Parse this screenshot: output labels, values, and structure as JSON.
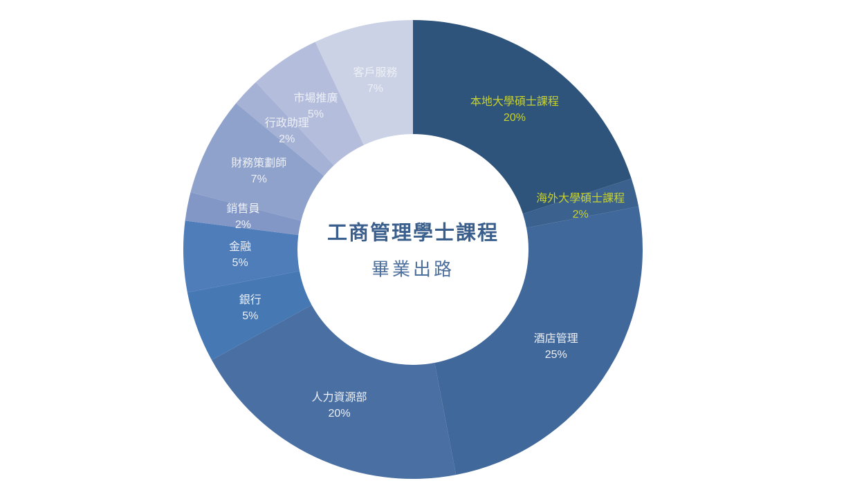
{
  "chart_data": {
    "type": "pie",
    "subtype": "donut",
    "title": "工商管理學士課程",
    "subtitle": "畢業出路",
    "start_angle_deg": 0,
    "direction": "clockwise",
    "unit": "%",
    "legend": "none",
    "labels_inside_slices": true,
    "categories": [
      "本地大學碩士課程",
      "海外大學碩士課程",
      "酒店管理",
      "人力資源部",
      "銀行",
      "金融",
      "銷售員",
      "財務策劃師",
      "行政助理",
      "市場推廣",
      "客戶服務"
    ],
    "values": [
      20,
      2,
      25,
      20,
      5,
      5,
      2,
      7,
      2,
      5,
      7
    ],
    "value_labels": [
      "20%",
      "2%",
      "25%",
      "20%",
      "5%",
      "5%",
      "2%",
      "7%",
      "2%",
      "5%",
      "7%"
    ],
    "slice_colors": [
      "#2F547B",
      "#3B628F",
      "#41689B",
      "#4A70A3",
      "#4678B4",
      "#4F7DBA",
      "#8297C6",
      "#8FA2CC",
      "#A6B2D5",
      "#B4BDDC",
      "#CBD2E5"
    ],
    "label_colors": [
      "#C8D22B",
      "#C8D22B",
      "#EDF0F6",
      "#EDF0F6",
      "#EDF0F6",
      "#EDF0F6",
      "#EDF0F6",
      "#EDF0F6",
      "#EDF0F6",
      "#EDF0F6",
      "#EDF0F6"
    ]
  },
  "center": {
    "title": "工商管理學士課程",
    "subtitle": "畢業出路"
  },
  "colors": {
    "background": "#FFFFFF",
    "center_title_text": "#3A5F8D",
    "center_subtitle_text": "#4C6F9E",
    "highlight_label_text": "#C8D22B",
    "normal_label_text": "#EDF0F6"
  }
}
